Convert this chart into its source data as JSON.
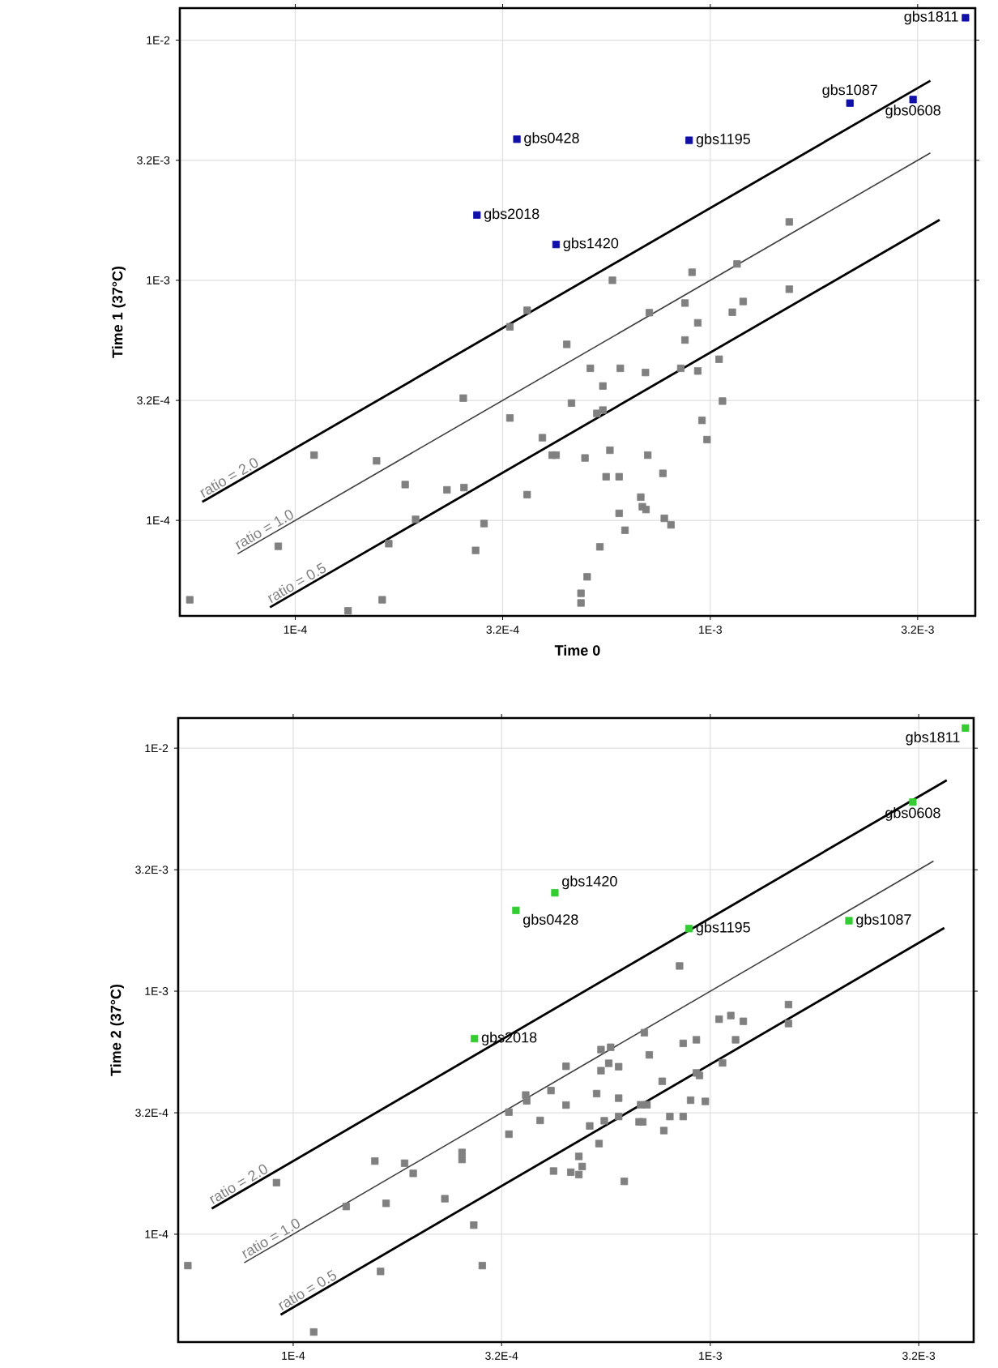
{
  "chart_data": [
    {
      "type": "scatter",
      "xlabel": "Time 0",
      "ylabel": "Time 1 (37°C)",
      "log": "xy",
      "grid": true,
      "marker": "square",
      "xlim": [
        5.27e-05,
        0.00435
      ],
      "ylim": [
        4e-05,
        0.0136
      ],
      "xticks": [
        {
          "value": 0.0001,
          "label": "1E-4"
        },
        {
          "value": 0.000316,
          "label": "3.2E-4"
        },
        {
          "value": 0.001,
          "label": "1E-3"
        },
        {
          "value": 0.00316,
          "label": "3.2E-3"
        }
      ],
      "yticks": [
        {
          "value": 0.0001,
          "label": "1E-4"
        },
        {
          "value": 0.000316,
          "label": "3.2E-4"
        },
        {
          "value": 0.001,
          "label": "1E-3"
        },
        {
          "value": 0.00316,
          "label": "3.2E-3"
        },
        {
          "value": 0.01,
          "label": "1E-2"
        }
      ],
      "series": [
        {
          "color": "#808080",
          "x": [
            5.57e-05,
            9.1e-05,
            0.000111,
            0.000134,
            0.000157,
            0.000162,
            0.000168,
            0.000184,
            0.000195,
            0.000232,
            0.000254,
            0.000255,
            0.000272,
            0.000285,
            0.000329,
            0.000329,
            0.000362,
            0.000362,
            0.000394,
            0.000416,
            0.000425,
            0.000451,
            0.000463,
            0.000488,
            0.000488,
            0.000499,
            0.000505,
            0.000514,
            0.000533,
            0.000551,
            0.000542,
            0.000551,
            0.000561,
            0.000573,
            0.000581,
            0.000603,
            0.000603,
            0.000607,
            0.000623,
            0.00068,
            0.000686,
            0.0007,
            0.000698,
            0.000707,
            0.000713,
            0.000769,
            0.000775,
            0.000804,
            0.000849,
            0.000869,
            0.000869,
            0.000904,
            0.000933,
            0.000933,
            0.000955,
            0.000982,
            0.00105,
            0.00107,
            0.00113,
            0.00116,
            0.0012,
            0.00155,
            0.00155
          ],
          "values": [
            4.67e-05,
            7.8e-05,
            0.000187,
            4.2e-05,
            0.000177,
            4.67e-05,
            8e-05,
            0.000141,
            0.000101,
            0.000134,
            0.000323,
            0.000137,
            7.5e-05,
            9.7e-05,
            0.00064,
            0.000267,
            0.00075,
            0.000128,
            0.000221,
            0.000187,
            0.000187,
            0.000541,
            0.000308,
            4.97e-05,
            4.53e-05,
            0.000182,
            5.82e-05,
            0.00043,
            0.000279,
            0.000288,
            7.76e-05,
            0.000363,
            0.000152,
            0.000196,
            0.001,
            0.000152,
            0.000107,
            0.00043,
            9.1e-05,
            0.000125,
            0.000114,
            0.000111,
            0.000413,
            0.000187,
            0.000733,
            0.000157,
            0.000102,
            9.58e-05,
            0.00043,
            0.000804,
            0.000564,
            0.00108,
            0.000665,
            0.000419,
            0.000261,
            0.000217,
            0.000469,
            0.000314,
            0.000736,
            0.00117,
            0.000816,
            0.00175,
            0.000918
          ]
        },
        {
          "color": "#1010a8",
          "x": [
            0.000342,
            0.000274,
            0.000425,
            0.000889,
            0.00217,
            0.00308,
            0.00412
          ],
          "values": [
            0.00387,
            0.00187,
            0.00141,
            0.00383,
            0.00547,
            0.00566,
            0.0124
          ]
        },
        {
          "type": "line",
          "name": "ratio = 2.0",
          "color": "#000000",
          "marker": "none",
          "x": [
            5.97e-05,
            0.00339
          ],
          "values": [
            0.0001194,
            0.00678
          ]
        },
        {
          "type": "line",
          "name": "ratio = 1.0",
          "color": "#404040",
          "marker": "none",
          "x": [
            7.26e-05,
            0.00339
          ],
          "values": [
            7.26e-05,
            0.00339
          ]
        },
        {
          "type": "line",
          "name": "ratio = 0.5",
          "color": "#000000",
          "marker": "none",
          "x": [
            8.69e-05,
            0.00357
          ],
          "values": [
            4.345e-05,
            0.001785
          ]
        }
      ],
      "annotations": [
        {
          "text": "gbs0428",
          "x": 0.000342,
          "y": 0.00387
        },
        {
          "text": "gbs2018",
          "x": 0.000274,
          "y": 0.00187
        },
        {
          "text": "gbs1420",
          "x": 0.000425,
          "y": 0.00141
        },
        {
          "text": "gbs1195",
          "x": 0.000889,
          "y": 0.00383
        },
        {
          "text": "gbs1087",
          "x": 0.00217,
          "y": 0.00547
        },
        {
          "text": "gbs0608",
          "x": 0.00308,
          "y": 0.00566
        },
        {
          "text": "gbs1811",
          "x": 0.00412,
          "y": 0.0124
        }
      ]
    },
    {
      "type": "scatter",
      "ylabel": "Time 2 (37°C)",
      "log": "xy",
      "grid": true,
      "marker": "square",
      "xlim": [
        5.3e-05,
        0.00428
      ],
      "ylim": [
        3.6e-05,
        0.0133
      ],
      "xticks": [
        {
          "value": 0.0001,
          "label": "1E-4"
        },
        {
          "value": 0.000316,
          "label": "3.2E-4"
        },
        {
          "value": 0.001,
          "label": "1E-3"
        },
        {
          "value": 0.00316,
          "label": "3.2E-3"
        }
      ],
      "yticks": [
        {
          "value": 0.0001,
          "label": "1E-4"
        },
        {
          "value": 0.000316,
          "label": "3.2E-4"
        },
        {
          "value": 0.001,
          "label": "1E-3"
        },
        {
          "value": 0.00316,
          "label": "3.2E-3"
        },
        {
          "value": 0.01,
          "label": "1E-2"
        }
      ],
      "series": [
        {
          "color": "#808080",
          "x": [
            5.59e-05,
            9.12e-05,
            0.000112,
            0.000134,
            0.000157,
            0.000162,
            0.000167,
            0.000185,
            0.000194,
            0.000231,
            0.000254,
            0.000254,
            0.000271,
            0.000284,
            0.000329,
            0.000329,
            0.000361,
            0.000363,
            0.000391,
            0.000415,
            0.000421,
            0.000451,
            0.000451,
            0.000463,
            0.000484,
            0.000484,
            0.000493,
            0.000514,
            0.000534,
            0.000541,
            0.000547,
            0.000547,
            0.000557,
            0.000571,
            0.000577,
            0.000603,
            0.000603,
            0.000603,
            0.000622,
            0.000675,
            0.000689,
            0.000681,
            0.000705,
            0.000695,
            0.000714,
            0.000767,
            0.000774,
            0.0008,
            0.000844,
            0.000861,
            0.000861,
            0.000897,
            0.000926,
            0.000926,
            0.000942,
            0.000973,
            0.00105,
            0.00112,
            0.00107,
            0.00115,
            0.0012,
            0.00154,
            0.00154
          ],
          "values": [
            7.43e-05,
            0.000163,
            3.96e-05,
            0.00013,
            0.0002,
            7.03e-05,
            0.000134,
            0.000196,
            0.000178,
            0.00014,
            0.000217,
            0.000203,
            0.000109,
            7.43e-05,
            0.000318,
            0.000258,
            0.000374,
            0.000354,
            0.000294,
            0.00039,
            0.000182,
            0.000491,
            0.00034,
            0.00018,
            0.000209,
            0.000176,
            0.00019,
            0.000279,
            0.000379,
            0.000236,
            0.000575,
            0.000471,
            0.000293,
            0.000505,
            0.000588,
            0.000489,
            0.000363,
            0.000305,
            0.000165,
            0.00029,
            0.00029,
            0.000341,
            0.000341,
            0.000675,
            0.000547,
            0.000426,
            0.000267,
            0.000305,
            0.00127,
            0.00061,
            0.000305,
            0.000356,
            0.000631,
            0.000461,
            0.00045,
            0.000352,
            0.000767,
            0.000794,
            0.000507,
            0.000631,
            0.000752,
            0.000881,
            0.000736
          ]
        },
        {
          "color": "#33cc33",
          "x": [
            0.000424,
            0.000342,
            0.000272,
            0.000889,
            0.00215,
            0.00306,
            0.00409
          ],
          "values": [
            0.00254,
            0.00215,
            0.000638,
            0.00181,
            0.00195,
            0.006,
            0.0121
          ]
        },
        {
          "type": "line",
          "name": "ratio = 2.0",
          "color": "#000000",
          "marker": "none",
          "x": [
            6.38e-05,
            0.00369
          ],
          "values": [
            0.0001276,
            0.00738
          ]
        },
        {
          "type": "line",
          "name": "ratio = 1.0",
          "color": "#404040",
          "marker": "none",
          "x": [
            7.63e-05,
            0.00343
          ],
          "values": [
            7.63e-05,
            0.00343
          ]
        },
        {
          "type": "line",
          "name": "ratio = 0.5",
          "color": "#000000",
          "marker": "none",
          "x": [
            9.33e-05,
            0.00364
          ],
          "values": [
            4.665e-05,
            0.00182
          ]
        }
      ],
      "annotations": [
        {
          "text": "gbs1420",
          "x": 0.000424,
          "y": 0.00254
        },
        {
          "text": "gbs0428",
          "x": 0.000342,
          "y": 0.00215
        },
        {
          "text": "gbs2018",
          "x": 0.000272,
          "y": 0.000638
        },
        {
          "text": "gbs1195",
          "x": 0.000889,
          "y": 0.00181
        },
        {
          "text": "gbs1087",
          "x": 0.00215,
          "y": 0.00195
        },
        {
          "text": "gbs0608",
          "x": 0.00306,
          "y": 0.006
        },
        {
          "text": "gbs1811",
          "x": 0.00409,
          "y": 0.0121
        }
      ]
    }
  ]
}
